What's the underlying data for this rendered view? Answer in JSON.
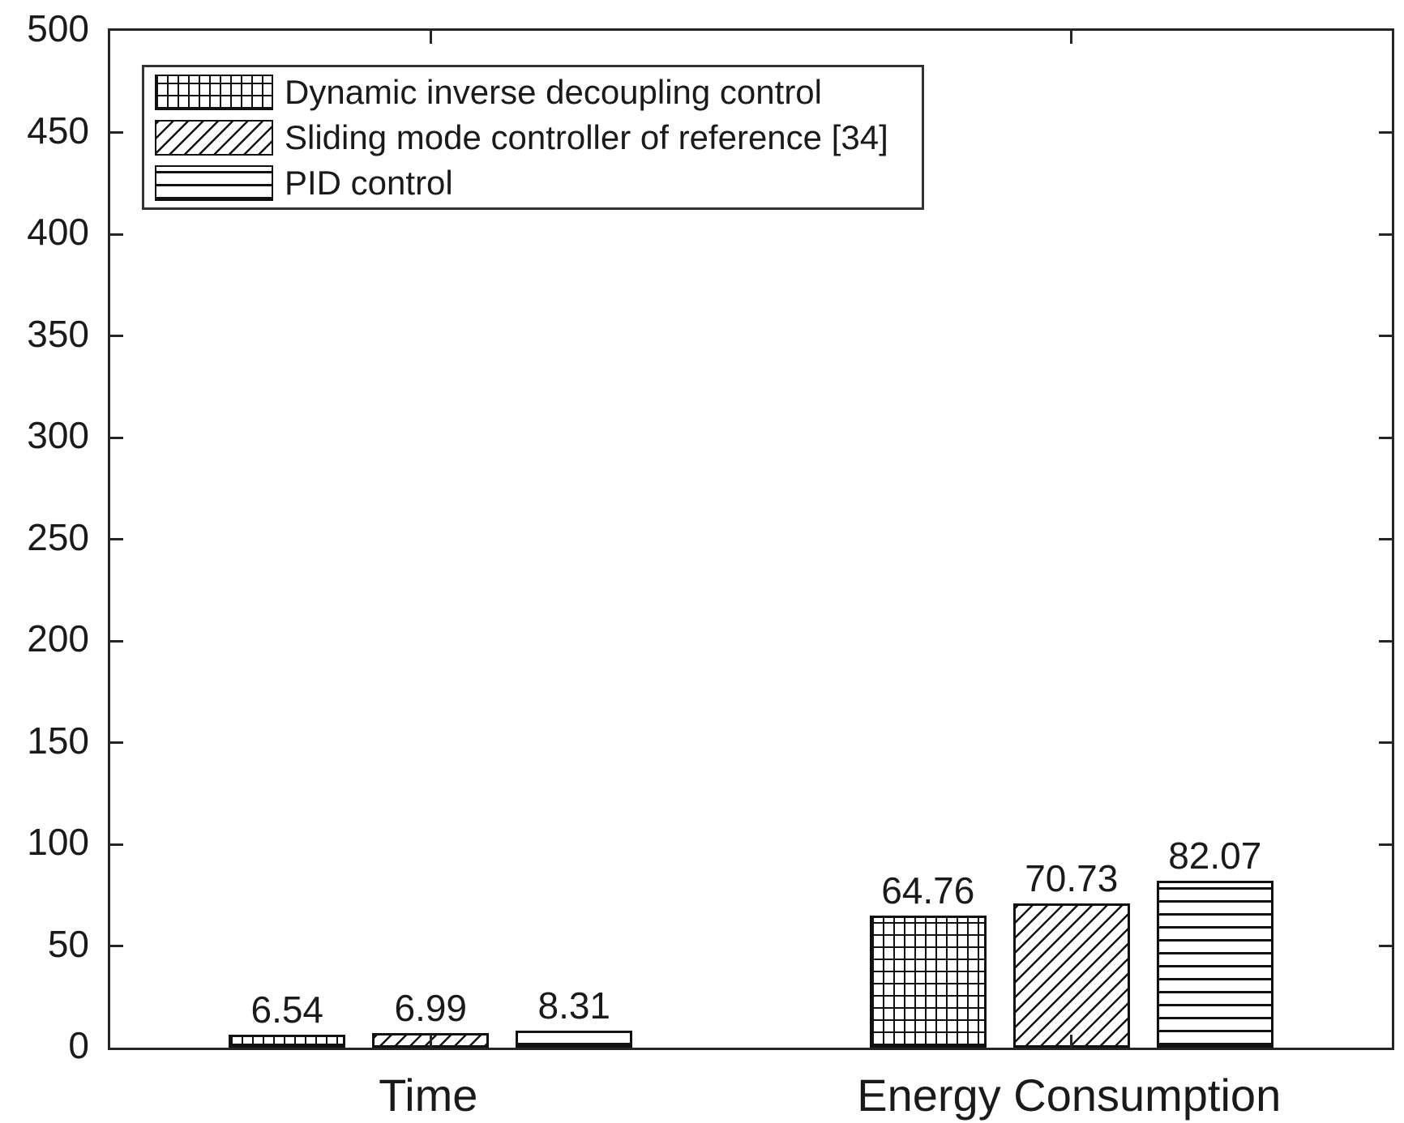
{
  "colors": {
    "background": "#ffffff",
    "ink": "#1a1a1a",
    "axis": "#262626",
    "bar_fill": "#ffffff",
    "hatch": "#111111"
  },
  "chart_data": {
    "type": "bar",
    "title": "",
    "xlabel": "",
    "ylabel": "",
    "categories": [
      "Time",
      "Energy Consumption"
    ],
    "series": [
      {
        "name": "Dynamic inverse decoupling control",
        "pattern": "grid",
        "values": [
          6.54,
          64.76
        ]
      },
      {
        "name": "Sliding mode controller of reference [34]",
        "pattern": "diagonal",
        "values": [
          6.99,
          70.73
        ]
      },
      {
        "name": "PID control",
        "pattern": "horizontal",
        "values": [
          8.31,
          82.07
        ]
      }
    ],
    "value_labels": [
      [
        "6.54",
        "6.99",
        "8.31"
      ],
      [
        "64.76",
        "70.73",
        "82.07"
      ]
    ],
    "ylim": [
      0,
      500
    ],
    "yticks": [
      0,
      50,
      100,
      150,
      200,
      250,
      300,
      350,
      400,
      450,
      500
    ],
    "grid": false,
    "legend_position": "top-left",
    "bar_style": "white fill with black hatch patterns, black outline"
  }
}
